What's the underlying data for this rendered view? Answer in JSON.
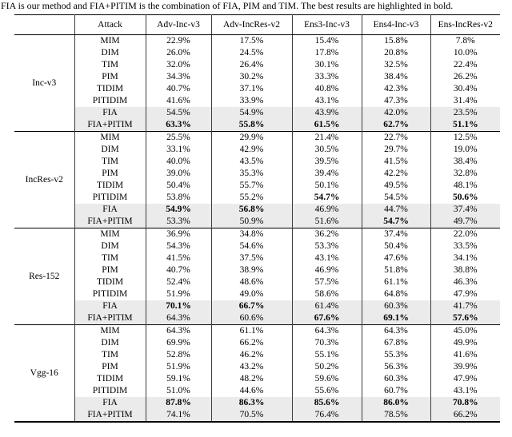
{
  "caption": "FIA is our method and FIA+PITIM is the combination of FIA, PIM and TIM. The best results are highlighted in bold.",
  "colors": {
    "shaded_row_bg": "#ebebeb",
    "rule_color": "#000000",
    "divider_color": "#3c3c3c",
    "text_color": "#000000"
  },
  "table": {
    "header": [
      "Attack",
      "Adv-Inc-v3",
      "Adv-IncRes-v2",
      "Ens3-Inc-v3",
      "Ens4-Inc-v3",
      "Ens-IncRes-v2"
    ],
    "groups": [
      {
        "model": "Inc-v3",
        "rows": [
          {
            "attack": "MIM",
            "values": [
              "22.9%",
              "17.5%",
              "15.4%",
              "15.8%",
              "7.8%"
            ],
            "bold": [
              0,
              0,
              0,
              0,
              0
            ],
            "shaded": false
          },
          {
            "attack": "DIM",
            "values": [
              "26.0%",
              "24.5%",
              "17.8%",
              "20.8%",
              "10.0%"
            ],
            "bold": [
              0,
              0,
              0,
              0,
              0
            ],
            "shaded": false
          },
          {
            "attack": "TIM",
            "values": [
              "32.0%",
              "26.4%",
              "30.1%",
              "32.5%",
              "22.4%"
            ],
            "bold": [
              0,
              0,
              0,
              0,
              0
            ],
            "shaded": false
          },
          {
            "attack": "PIM",
            "values": [
              "34.3%",
              "30.2%",
              "33.3%",
              "38.4%",
              "26.2%"
            ],
            "bold": [
              0,
              0,
              0,
              0,
              0
            ],
            "shaded": false
          },
          {
            "attack": "TIDIM",
            "values": [
              "40.7%",
              "37.1%",
              "40.8%",
              "42.3%",
              "30.4%"
            ],
            "bold": [
              0,
              0,
              0,
              0,
              0
            ],
            "shaded": false
          },
          {
            "attack": "PITIDIM",
            "values": [
              "41.6%",
              "33.9%",
              "43.1%",
              "47.3%",
              "31.4%"
            ],
            "bold": [
              0,
              0,
              0,
              0,
              0
            ],
            "shaded": false
          },
          {
            "attack": "FIA",
            "values": [
              "54.5%",
              "54.9%",
              "43.9%",
              "42.0%",
              "23.5%"
            ],
            "bold": [
              0,
              0,
              0,
              0,
              0
            ],
            "shaded": true
          },
          {
            "attack": "FIA+PITIM",
            "values": [
              "63.3%",
              "55.8%",
              "61.5%",
              "62.7%",
              "51.1%"
            ],
            "bold": [
              1,
              1,
              1,
              1,
              1
            ],
            "shaded": true
          }
        ]
      },
      {
        "model": "IncRes-v2",
        "rows": [
          {
            "attack": "MIM",
            "values": [
              "25.5%",
              "29.9%",
              "21.4%",
              "22.7%",
              "12.5%"
            ],
            "bold": [
              0,
              0,
              0,
              0,
              0
            ],
            "shaded": false
          },
          {
            "attack": "DIM",
            "values": [
              "33.1%",
              "42.9%",
              "30.5%",
              "29.7%",
              "19.0%"
            ],
            "bold": [
              0,
              0,
              0,
              0,
              0
            ],
            "shaded": false
          },
          {
            "attack": "TIM",
            "values": [
              "40.0%",
              "43.5%",
              "39.5%",
              "41.5%",
              "38.4%"
            ],
            "bold": [
              0,
              0,
              0,
              0,
              0
            ],
            "shaded": false
          },
          {
            "attack": "PIM",
            "values": [
              "39.0%",
              "35.3%",
              "39.4%",
              "42.2%",
              "32.8%"
            ],
            "bold": [
              0,
              0,
              0,
              0,
              0
            ],
            "shaded": false
          },
          {
            "attack": "TIDIM",
            "values": [
              "50.4%",
              "55.7%",
              "50.1%",
              "49.5%",
              "48.1%"
            ],
            "bold": [
              0,
              0,
              0,
              0,
              0
            ],
            "shaded": false
          },
          {
            "attack": "PITIDIM",
            "values": [
              "53.8%",
              "55.2%",
              "54.7%",
              "54.5%",
              "50.6%"
            ],
            "bold": [
              0,
              0,
              1,
              0,
              1
            ],
            "shaded": false
          },
          {
            "attack": "FIA",
            "values": [
              "54.9%",
              "56.8%",
              "46.9%",
              "44.7%",
              "37.4%"
            ],
            "bold": [
              1,
              1,
              0,
              0,
              0
            ],
            "shaded": true
          },
          {
            "attack": "FIA+PITIM",
            "values": [
              "53.3%",
              "50.9%",
              "51.6%",
              "54.7%",
              "49.7%"
            ],
            "bold": [
              0,
              0,
              0,
              1,
              0
            ],
            "shaded": true
          }
        ]
      },
      {
        "model": "Res-152",
        "rows": [
          {
            "attack": "MIM",
            "values": [
              "36.9%",
              "34.8%",
              "36.2%",
              "37.4%",
              "22.0%"
            ],
            "bold": [
              0,
              0,
              0,
              0,
              0
            ],
            "shaded": false
          },
          {
            "attack": "DIM",
            "values": [
              "54.3%",
              "54.6%",
              "53.3%",
              "50.4%",
              "33.5%"
            ],
            "bold": [
              0,
              0,
              0,
              0,
              0
            ],
            "shaded": false
          },
          {
            "attack": "TIM",
            "values": [
              "41.5%",
              "37.5%",
              "43.1%",
              "47.6%",
              "34.1%"
            ],
            "bold": [
              0,
              0,
              0,
              0,
              0
            ],
            "shaded": false
          },
          {
            "attack": "PIM",
            "values": [
              "40.7%",
              "38.9%",
              "46.9%",
              "51.8%",
              "38.8%"
            ],
            "bold": [
              0,
              0,
              0,
              0,
              0
            ],
            "shaded": false
          },
          {
            "attack": "TIDIM",
            "values": [
              "52.4%",
              "48.6%",
              "57.5%",
              "61.1%",
              "46.3%"
            ],
            "bold": [
              0,
              0,
              0,
              0,
              0
            ],
            "shaded": false
          },
          {
            "attack": "PITIDIM",
            "values": [
              "51.9%",
              "49.0%",
              "58.6%",
              "64.8%",
              "47.9%"
            ],
            "bold": [
              0,
              0,
              0,
              0,
              0
            ],
            "shaded": false
          },
          {
            "attack": "FIA",
            "values": [
              "70.1%",
              "66.7%",
              "61.4%",
              "60.3%",
              "41.7%"
            ],
            "bold": [
              1,
              1,
              0,
              0,
              0
            ],
            "shaded": true
          },
          {
            "attack": "FIA+PITIM",
            "values": [
              "64.3%",
              "60.6%",
              "67.6%",
              "69.1%",
              "57.6%"
            ],
            "bold": [
              0,
              0,
              1,
              1,
              1
            ],
            "shaded": true
          }
        ]
      },
      {
        "model": "Vgg-16",
        "rows": [
          {
            "attack": "MIM",
            "values": [
              "64.3%",
              "61.1%",
              "64.3%",
              "64.3%",
              "45.0%"
            ],
            "bold": [
              0,
              0,
              0,
              0,
              0
            ],
            "shaded": false
          },
          {
            "attack": "DIM",
            "values": [
              "69.9%",
              "66.2%",
              "70.3%",
              "67.8%",
              "49.9%"
            ],
            "bold": [
              0,
              0,
              0,
              0,
              0
            ],
            "shaded": false
          },
          {
            "attack": "TIM",
            "values": [
              "52.8%",
              "46.2%",
              "55.1%",
              "55.3%",
              "41.6%"
            ],
            "bold": [
              0,
              0,
              0,
              0,
              0
            ],
            "shaded": false
          },
          {
            "attack": "PIM",
            "values": [
              "51.9%",
              "43.2%",
              "50.2%",
              "56.3%",
              "39.9%"
            ],
            "bold": [
              0,
              0,
              0,
              0,
              0
            ],
            "shaded": false
          },
          {
            "attack": "TIDIM",
            "values": [
              "59.1%",
              "48.2%",
              "59.6%",
              "60.3%",
              "47.9%"
            ],
            "bold": [
              0,
              0,
              0,
              0,
              0
            ],
            "shaded": false
          },
          {
            "attack": "PITIDIM",
            "values": [
              "51.0%",
              "44.6%",
              "55.6%",
              "60.7%",
              "43.1%"
            ],
            "bold": [
              0,
              0,
              0,
              0,
              0
            ],
            "shaded": false
          },
          {
            "attack": "FIA",
            "values": [
              "87.8%",
              "86.3%",
              "85.6%",
              "86.0%",
              "70.8%"
            ],
            "bold": [
              1,
              1,
              1,
              1,
              1
            ],
            "shaded": true
          },
          {
            "attack": "FIA+PITIM",
            "values": [
              "74.1%",
              "70.5%",
              "76.4%",
              "78.5%",
              "66.2%"
            ],
            "bold": [
              0,
              0,
              0,
              0,
              0
            ],
            "shaded": true
          }
        ]
      }
    ]
  }
}
